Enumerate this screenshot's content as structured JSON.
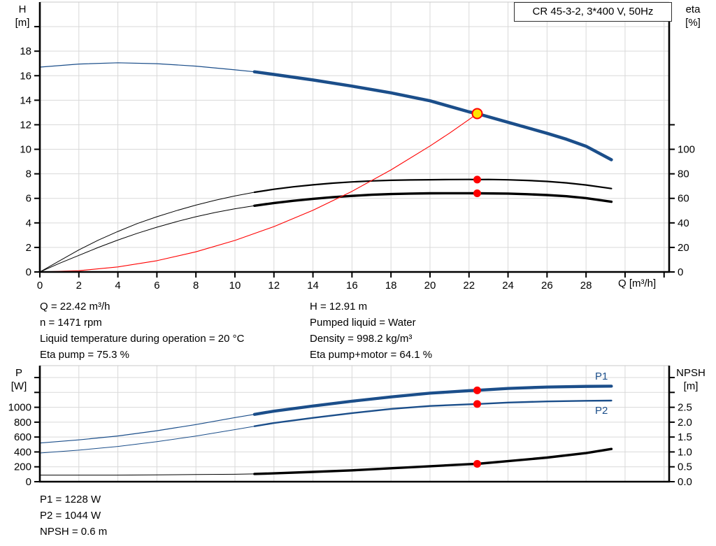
{
  "title_box": "CR 45-3-2, 3*400 V, 50Hz",
  "palette": {
    "blue": "#1b4e8a",
    "red": "#ff0000",
    "yellow": "#ffe500",
    "black": "#000000",
    "grid": "#d9d9d9",
    "border": "#c8c8c8",
    "axis": "#000000"
  },
  "info_top": {
    "left": [
      "Q = 22.42 m³/h",
      "n = 1471 rpm",
      "Liquid temperature during operation = 20 °C",
      "Eta pump = 75.3 %"
    ],
    "right": [
      "H = 12.91 m",
      "Pumped liquid = Water",
      "Density = 998.2 kg/m³",
      "Eta pump+motor = 64.1 %"
    ]
  },
  "info_bottom": [
    "P1 = 1228 W",
    "P2 = 1044 W",
    "NPSH = 0.6 m"
  ],
  "chart_data": [
    {
      "id": "head-chart",
      "type": "line",
      "title": "CR 45-3-2, 3*400 V, 50Hz",
      "x_axis": {
        "label": "Q [m³/h]",
        "min": 0,
        "max": 32.26,
        "tick_values": [
          0,
          2,
          4,
          6,
          8,
          10,
          12,
          14,
          16,
          18,
          20,
          22,
          24,
          26,
          28
        ],
        "tick_labels": [
          "0",
          "2",
          "4",
          "6",
          "8",
          "10",
          "12",
          "14",
          "16",
          "18",
          "20",
          "22",
          "24",
          "26",
          "28"
        ],
        "unlabeled_ticks": [
          30,
          32
        ]
      },
      "x_grid": [
        2,
        4,
        6,
        8,
        10,
        12,
        14,
        16,
        18,
        20,
        22,
        24,
        26,
        28,
        30,
        32
      ],
      "y_grid": [
        2,
        4,
        6,
        8,
        10,
        12,
        14,
        16,
        18,
        20
      ],
      "y_left": {
        "label_lines": [
          "H",
          "[m]"
        ],
        "min": 0,
        "max": 22,
        "tick_values": [
          0,
          2,
          4,
          6,
          8,
          10,
          12,
          14,
          16,
          18
        ],
        "tick_labels": [
          "0",
          "2",
          "4",
          "6",
          "8",
          "10",
          "12",
          "14",
          "16",
          "18"
        ],
        "unlabeled_ticks": [
          20
        ]
      },
      "y_right": {
        "label_lines": [
          "eta",
          "[%]"
        ],
        "min": 0,
        "max": 220,
        "tick_values": [
          0,
          20,
          40,
          60,
          80,
          100
        ],
        "tick_labels": [
          "0",
          "20",
          "40",
          "60",
          "80",
          "100"
        ],
        "unlabeled_ticks": [
          120
        ]
      },
      "series": [
        {
          "id": "h-q-curve",
          "name": "Head curve",
          "axis": "left",
          "color": "blue",
          "w_thin": 1.2,
          "w_thick": 4.5,
          "thick_from": 11,
          "points": [
            [
              0,
              16.7
            ],
            [
              2,
              16.95
            ],
            [
              4,
              17.05
            ],
            [
              6,
              16.98
            ],
            [
              8,
              16.78
            ],
            [
              10,
              16.48
            ],
            [
              11,
              16.32
            ],
            [
              12,
              16.1
            ],
            [
              14,
              15.65
            ],
            [
              16,
              15.15
            ],
            [
              18,
              14.6
            ],
            [
              20,
              13.95
            ],
            [
              22,
              13.05
            ],
            [
              22.42,
              12.91
            ],
            [
              24,
              12.2
            ],
            [
              26,
              11.3
            ],
            [
              27,
              10.82
            ],
            [
              28,
              10.25
            ],
            [
              29.3,
              9.15
            ]
          ]
        },
        {
          "id": "eta-pump-curve",
          "name": "Eta pump",
          "axis": "right",
          "color": "black",
          "w_thin": 1,
          "w_thick": 2.2,
          "thick_from": 11,
          "points": [
            [
              0,
              0
            ],
            [
              1,
              9
            ],
            [
              2,
              18
            ],
            [
              3,
              26
            ],
            [
              4,
              33
            ],
            [
              5,
              39.5
            ],
            [
              6,
              45
            ],
            [
              7,
              50
            ],
            [
              8,
              54.5
            ],
            [
              9,
              58.5
            ],
            [
              10,
              62
            ],
            [
              11,
              65
            ],
            [
              12,
              67.4
            ],
            [
              13,
              69.4
            ],
            [
              14,
              71
            ],
            [
              15,
              72.4
            ],
            [
              16,
              73.4
            ],
            [
              17,
              74.2
            ],
            [
              18,
              74.7
            ],
            [
              19,
              75
            ],
            [
              20,
              75.2
            ],
            [
              21,
              75.35
            ],
            [
              22,
              75.4
            ],
            [
              22.42,
              75.3
            ],
            [
              23,
              75.4
            ],
            [
              24,
              75.1
            ],
            [
              25,
              74.6
            ],
            [
              26,
              73.8
            ],
            [
              27,
              72.6
            ],
            [
              28,
              70.9
            ],
            [
              29.3,
              68
            ]
          ]
        },
        {
          "id": "eta-pump-motor-curve",
          "name": "Eta pump+motor",
          "axis": "right",
          "color": "black",
          "w_thin": 1,
          "w_thick": 3.4,
          "thick_from": 11,
          "points": [
            [
              0,
              0
            ],
            [
              1,
              7
            ],
            [
              2,
              13.5
            ],
            [
              3,
              20
            ],
            [
              4,
              26
            ],
            [
              5,
              31.5
            ],
            [
              6,
              36.5
            ],
            [
              7,
              41
            ],
            [
              8,
              45
            ],
            [
              9,
              48.5
            ],
            [
              10,
              51.5
            ],
            [
              11,
              54
            ],
            [
              12,
              56.2
            ],
            [
              13,
              58
            ],
            [
              14,
              59.6
            ],
            [
              15,
              60.9
            ],
            [
              16,
              62
            ],
            [
              17,
              62.9
            ],
            [
              18,
              63.5
            ],
            [
              19,
              63.9
            ],
            [
              20,
              64.1
            ],
            [
              21,
              64.2
            ],
            [
              22,
              64.2
            ],
            [
              22.42,
              64.1
            ],
            [
              24,
              63.9
            ],
            [
              25,
              63.4
            ],
            [
              26,
              62.7
            ],
            [
              27,
              61.7
            ],
            [
              28,
              60.2
            ],
            [
              29.3,
              57.2
            ]
          ]
        },
        {
          "id": "system-curve",
          "name": "System curve",
          "axis": "left",
          "color": "red",
          "w_thin": 1.1,
          "points": [
            [
              0,
              0
            ],
            [
              2,
              0.1
            ],
            [
              4,
              0.41
            ],
            [
              6,
              0.92
            ],
            [
              8,
              1.64
            ],
            [
              10,
              2.57
            ],
            [
              12,
              3.7
            ],
            [
              14,
              5.03
            ],
            [
              16,
              6.57
            ],
            [
              18,
              8.32
            ],
            [
              20,
              10.27
            ],
            [
              21,
              11.32
            ],
            [
              22,
              12.43
            ],
            [
              22.42,
              12.91
            ]
          ]
        }
      ],
      "markers": [
        {
          "id": "duty-point",
          "x": 22.42,
          "y": 12.91,
          "axis": "left",
          "fill": "yellow",
          "stroke": "red",
          "sw": 2,
          "r": 7
        },
        {
          "id": "eta-pump-point",
          "x": 22.42,
          "y": 75.3,
          "axis": "right",
          "fill": "red",
          "r": 5.5
        },
        {
          "id": "eta-pump-motor-point",
          "x": 22.42,
          "y": 64.1,
          "axis": "right",
          "fill": "red",
          "r": 5.5
        }
      ]
    },
    {
      "id": "power-npsh-chart",
      "type": "line",
      "x_axis": {
        "label": "",
        "min": 0,
        "max": 32.26,
        "tick_values": [],
        "tick_labels": [],
        "unlabeled_ticks": []
      },
      "x_grid": [
        2,
        4,
        6,
        8,
        10,
        12,
        14,
        16,
        18,
        20,
        22,
        24,
        26,
        28,
        30,
        32
      ],
      "y_grid": [
        200,
        400,
        600,
        800,
        1000,
        1200,
        1400
      ],
      "y_left": {
        "label_lines": [
          "P",
          "[W]"
        ],
        "min": 0,
        "max": 1560,
        "tick_values": [
          0,
          200,
          400,
          600,
          800,
          1000
        ],
        "tick_labels": [
          "0",
          "200",
          "400",
          "600",
          "800",
          "1000"
        ],
        "unlabeled_ticks": [
          1200,
          1400
        ]
      },
      "y_right": {
        "label_lines": [
          "NPSH",
          "[m]"
        ],
        "min": 0,
        "max": 3.9,
        "tick_values": [
          0,
          0.5,
          1,
          1.5,
          2,
          2.5
        ],
        "tick_labels": [
          "0.0",
          "0.5",
          "1.0",
          "1.5",
          "2.0",
          "2.5"
        ],
        "unlabeled_ticks": [
          3,
          3.5
        ]
      },
      "series": [
        {
          "id": "p1-curve",
          "name": "P1",
          "axis": "left",
          "color": "blue",
          "w_thin": 1.2,
          "w_thick": 4.3,
          "thick_from": 11,
          "points": [
            [
              0,
              520
            ],
            [
              2,
              562
            ],
            [
              4,
              615
            ],
            [
              6,
              685
            ],
            [
              8,
              768
            ],
            [
              10,
              862
            ],
            [
              11,
              905
            ],
            [
              12,
              948
            ],
            [
              14,
              1018
            ],
            [
              16,
              1082
            ],
            [
              18,
              1140
            ],
            [
              20,
              1190
            ],
            [
              22,
              1224
            ],
            [
              22.42,
              1228
            ],
            [
              24,
              1254
            ],
            [
              26,
              1272
            ],
            [
              28,
              1281
            ],
            [
              29.3,
              1284
            ]
          ]
        },
        {
          "id": "p2-curve",
          "name": "P2",
          "axis": "left",
          "color": "blue",
          "w_thin": 1,
          "w_thick": 2.4,
          "thick_from": 11,
          "points": [
            [
              0,
              385
            ],
            [
              2,
              424
            ],
            [
              4,
              474
            ],
            [
              6,
              538
            ],
            [
              8,
              614
            ],
            [
              10,
              700
            ],
            [
              11,
              745
            ],
            [
              12,
              788
            ],
            [
              14,
              858
            ],
            [
              16,
              922
            ],
            [
              18,
              978
            ],
            [
              20,
              1018
            ],
            [
              22,
              1040
            ],
            [
              22.42,
              1044
            ],
            [
              24,
              1064
            ],
            [
              26,
              1079
            ],
            [
              28,
              1087
            ],
            [
              29.3,
              1090
            ]
          ]
        },
        {
          "id": "npsh-curve",
          "name": "NPSH",
          "axis": "right",
          "color": "black",
          "w_thin": 1,
          "w_thick": 3.4,
          "thick_from": 11,
          "points": [
            [
              0,
              0.22
            ],
            [
              2,
              0.22
            ],
            [
              4,
              0.22
            ],
            [
              6,
              0.23
            ],
            [
              8,
              0.24
            ],
            [
              10,
              0.25
            ],
            [
              11,
              0.26
            ],
            [
              12,
              0.28
            ],
            [
              14,
              0.33
            ],
            [
              16,
              0.38
            ],
            [
              18,
              0.45
            ],
            [
              20,
              0.52
            ],
            [
              22,
              0.59
            ],
            [
              22.42,
              0.6
            ],
            [
              24,
              0.69
            ],
            [
              26,
              0.81
            ],
            [
              28,
              0.96
            ],
            [
              29.3,
              1.1
            ]
          ]
        }
      ],
      "markers": [
        {
          "id": "p1-point",
          "x": 22.42,
          "y": 1228,
          "axis": "left",
          "fill": "red",
          "r": 5.5
        },
        {
          "id": "p2-point",
          "x": 22.42,
          "y": 1044,
          "axis": "left",
          "fill": "red",
          "r": 5.5
        },
        {
          "id": "npsh-point",
          "x": 22.42,
          "y": 0.6,
          "axis": "right",
          "fill": "red",
          "r": 5.5
        }
      ],
      "curve_labels": [
        {
          "text": "P1"
        },
        {
          "text": "P2"
        }
      ]
    }
  ]
}
